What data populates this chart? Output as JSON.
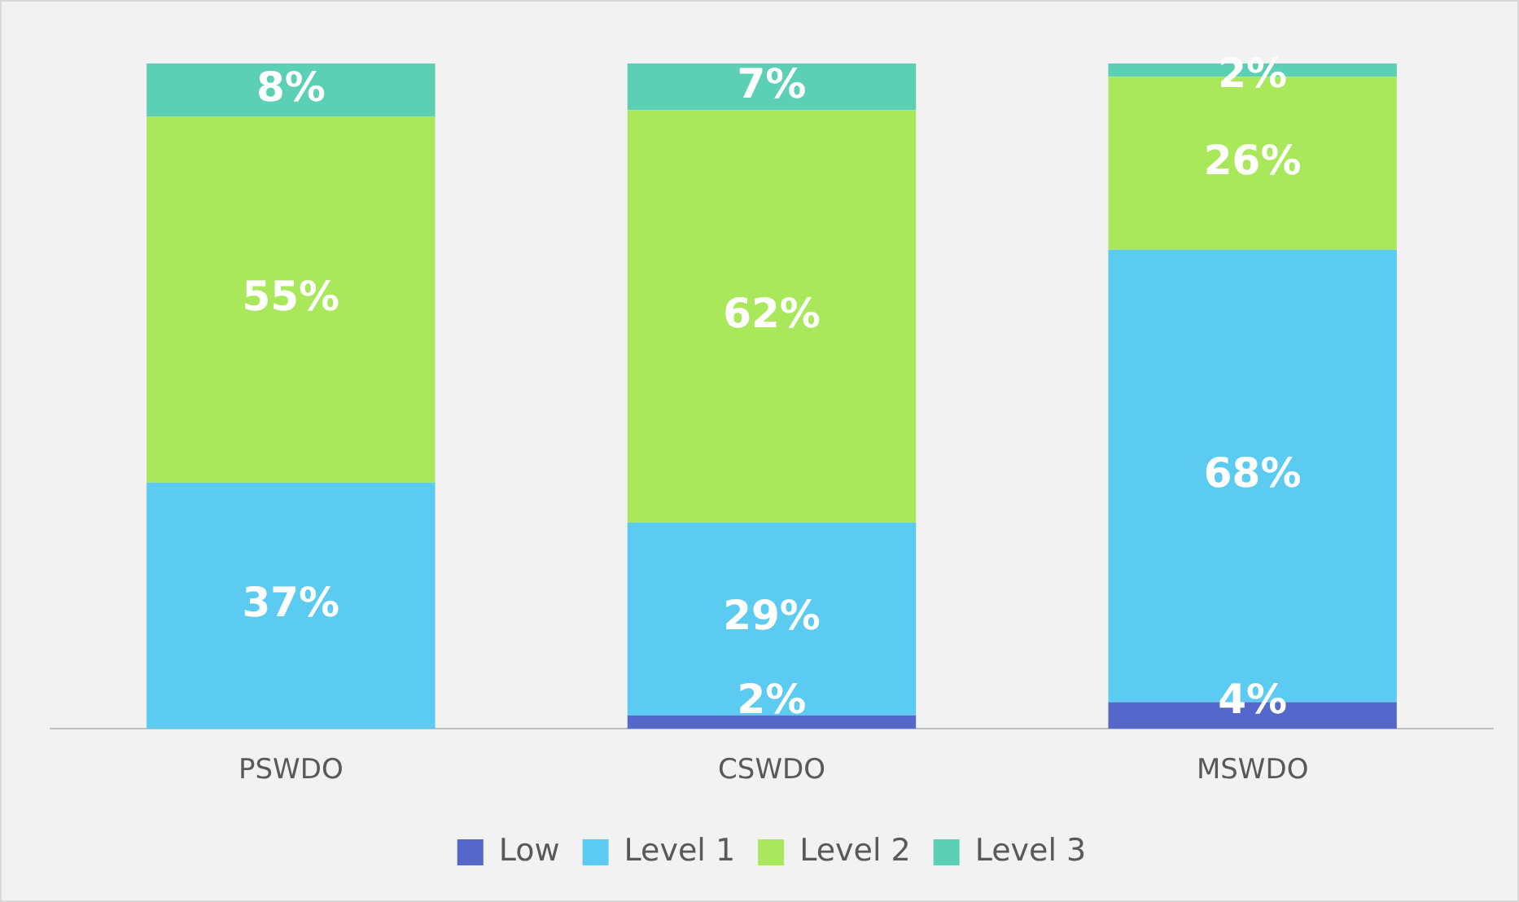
{
  "chart_data": {
    "type": "bar",
    "stacked": true,
    "categories": [
      "PSWDO",
      "CSWDO",
      "MSWDO"
    ],
    "series": [
      {
        "name": "Low",
        "color": "#5468cc",
        "values": [
          null,
          2,
          4
        ],
        "value_labels": [
          null,
          "2%",
          "4%"
        ]
      },
      {
        "name": "Level 1",
        "color": "#5bcbf2",
        "values": [
          37,
          29,
          68
        ],
        "value_labels": [
          "37%",
          "29%",
          "68%"
        ]
      },
      {
        "name": "Level 2",
        "color": "#a8e85a",
        "values": [
          55,
          62,
          26
        ],
        "value_labels": [
          "55%",
          "62%",
          "26%"
        ]
      },
      {
        "name": "Level 3",
        "color": "#5bd0b4",
        "values": [
          8,
          7,
          2
        ],
        "value_labels": [
          "8%",
          "7%",
          "2%"
        ]
      }
    ],
    "legend": "bottom"
  }
}
